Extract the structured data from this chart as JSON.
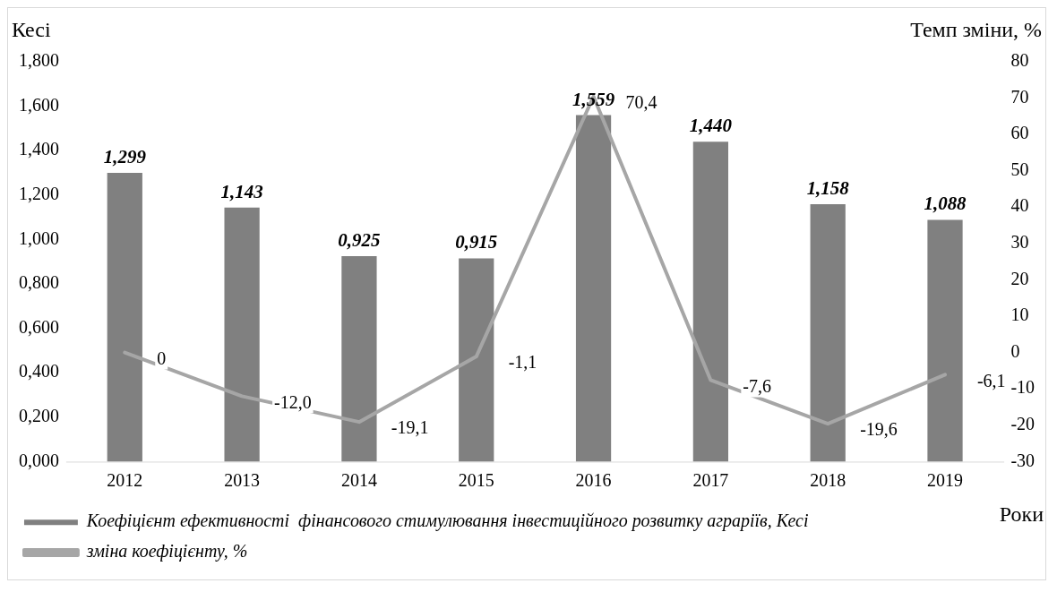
{
  "chart_data": {
    "type": "bar",
    "categories": [
      "2012",
      "2013",
      "2014",
      "2015",
      "2016",
      "2017",
      "2018",
      "2019"
    ],
    "series": [
      {
        "name": "Коефіцієнт ефективності  фінансового стимулювання інвестиційного розвитку аграріїв, Кесі",
        "color": "#808080",
        "values": [
          1.299,
          1.143,
          0.925,
          0.915,
          1.559,
          1.44,
          1.158,
          1.088
        ],
        "value_labels": [
          "1,299",
          "1,143",
          "0,925",
          "0,915",
          "1,559",
          "1,440",
          "1,158",
          "1,088"
        ]
      },
      {
        "name": "зміна коефіцієнту, %",
        "type": "line",
        "axis": "y2",
        "color": "#a6a6a6",
        "values": [
          0,
          -12.0,
          -19.1,
          -1.1,
          70.4,
          -7.6,
          -19.6,
          -6.1
        ],
        "value_labels": [
          "0",
          "-12,0",
          "-19,1",
          "-1,1",
          "70,4",
          "-7,6",
          "-19,6",
          "-6,1"
        ]
      }
    ],
    "ylabel": "Кесі",
    "y2label": "Темп зміни, %",
    "xlabel": "Роки",
    "ylim": [
      0,
      1.8
    ],
    "yticks": [
      {
        "value": 0,
        "label": "0,000"
      },
      {
        "value": 0.2,
        "label": "0,200"
      },
      {
        "value": 0.4,
        "label": "0,400"
      },
      {
        "value": 0.6,
        "label": "0,600"
      },
      {
        "value": 0.8,
        "label": "0,800"
      },
      {
        "value": 1.0,
        "label": "1,000"
      },
      {
        "value": 1.2,
        "label": "1,200"
      },
      {
        "value": 1.4,
        "label": "1,400"
      },
      {
        "value": 1.6,
        "label": "1,600"
      },
      {
        "value": 1.8,
        "label": "1,800"
      }
    ],
    "y2lim": [
      -30,
      80
    ],
    "y2ticks": [
      -30,
      -20,
      -10,
      0,
      10,
      20,
      30,
      40,
      50,
      60,
      70,
      80
    ],
    "legend": "bottom",
    "marker": "none",
    "line_style": "solid"
  }
}
